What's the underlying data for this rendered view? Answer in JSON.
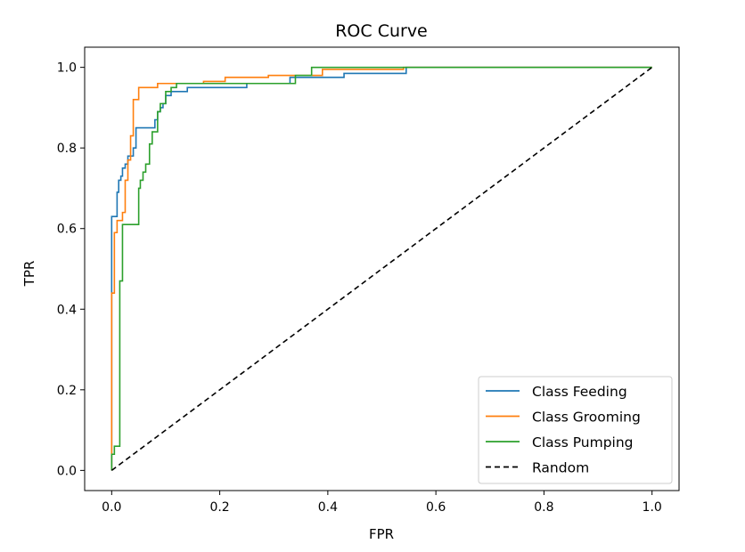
{
  "chart_data": {
    "type": "line",
    "title": "ROC Curve",
    "xlabel": "FPR",
    "ylabel": "TPR",
    "xlim": [
      -0.05,
      1.05
    ],
    "ylim": [
      -0.05,
      1.05
    ],
    "xticks": [
      0.0,
      0.2,
      0.4,
      0.6,
      0.8,
      1.0
    ],
    "xtick_labels": [
      "0.0",
      "0.2",
      "0.4",
      "0.6",
      "0.8",
      "1.0"
    ],
    "yticks": [
      0.0,
      0.2,
      0.4,
      0.6,
      0.8,
      1.0
    ],
    "ytick_labels": [
      "0.0",
      "0.2",
      "0.4",
      "0.6",
      "0.8",
      "1.0"
    ],
    "grid": false,
    "legend_position": "lower-right",
    "series": [
      {
        "name": "Class Feeding",
        "color": "#1f77b4",
        "style": "step",
        "x": [
          0.0,
          0.0,
          0.0,
          0.01,
          0.01,
          0.013,
          0.013,
          0.017,
          0.017,
          0.02,
          0.02,
          0.025,
          0.025,
          0.03,
          0.03,
          0.04,
          0.04,
          0.045,
          0.045,
          0.05,
          0.05,
          0.08,
          0.08,
          0.085,
          0.085,
          0.09,
          0.09,
          0.095,
          0.095,
          0.1,
          0.1,
          0.11,
          0.11,
          0.14,
          0.14,
          0.25,
          0.25,
          0.33,
          0.33,
          0.43,
          0.43,
          0.545,
          0.545,
          1.0
        ],
        "y": [
          0.0,
          0.44,
          0.63,
          0.63,
          0.69,
          0.69,
          0.72,
          0.72,
          0.73,
          0.73,
          0.75,
          0.75,
          0.76,
          0.76,
          0.78,
          0.78,
          0.8,
          0.8,
          0.85,
          0.85,
          0.85,
          0.85,
          0.87,
          0.87,
          0.89,
          0.89,
          0.9,
          0.9,
          0.91,
          0.91,
          0.93,
          0.93,
          0.94,
          0.94,
          0.95,
          0.95,
          0.96,
          0.96,
          0.975,
          0.975,
          0.985,
          0.985,
          1.0,
          1.0
        ]
      },
      {
        "name": "Class Grooming",
        "color": "#ff7f0e",
        "style": "step",
        "x": [
          0.0,
          0.0,
          0.0,
          0.005,
          0.005,
          0.01,
          0.01,
          0.02,
          0.02,
          0.025,
          0.025,
          0.03,
          0.03,
          0.035,
          0.035,
          0.04,
          0.04,
          0.05,
          0.05,
          0.085,
          0.085,
          0.17,
          0.17,
          0.21,
          0.21,
          0.29,
          0.29,
          0.39,
          0.39,
          0.54,
          0.54,
          1.0
        ],
        "y": [
          0.0,
          0.02,
          0.44,
          0.44,
          0.59,
          0.59,
          0.62,
          0.62,
          0.64,
          0.64,
          0.72,
          0.72,
          0.77,
          0.77,
          0.83,
          0.83,
          0.92,
          0.92,
          0.95,
          0.95,
          0.96,
          0.96,
          0.965,
          0.965,
          0.975,
          0.975,
          0.98,
          0.98,
          0.995,
          0.995,
          1.0,
          1.0
        ]
      },
      {
        "name": "Class Pumping",
        "color": "#2ca02c",
        "style": "step",
        "x": [
          0.0,
          0.0,
          0.0,
          0.005,
          0.005,
          0.015,
          0.015,
          0.02,
          0.02,
          0.05,
          0.05,
          0.053,
          0.053,
          0.058,
          0.058,
          0.063,
          0.063,
          0.07,
          0.07,
          0.075,
          0.075,
          0.085,
          0.085,
          0.09,
          0.09,
          0.1,
          0.1,
          0.11,
          0.11,
          0.12,
          0.12,
          0.34,
          0.34,
          0.37,
          0.37,
          1.0
        ],
        "y": [
          0.0,
          0.02,
          0.04,
          0.04,
          0.06,
          0.06,
          0.47,
          0.47,
          0.61,
          0.61,
          0.7,
          0.7,
          0.72,
          0.72,
          0.74,
          0.74,
          0.76,
          0.76,
          0.81,
          0.81,
          0.84,
          0.84,
          0.89,
          0.89,
          0.91,
          0.91,
          0.94,
          0.94,
          0.95,
          0.95,
          0.96,
          0.96,
          0.98,
          0.98,
          1.0,
          1.0
        ]
      },
      {
        "name": "Random",
        "color": "#000000",
        "style": "dashed",
        "x": [
          0.0,
          1.0
        ],
        "y": [
          0.0,
          1.0
        ]
      }
    ]
  }
}
